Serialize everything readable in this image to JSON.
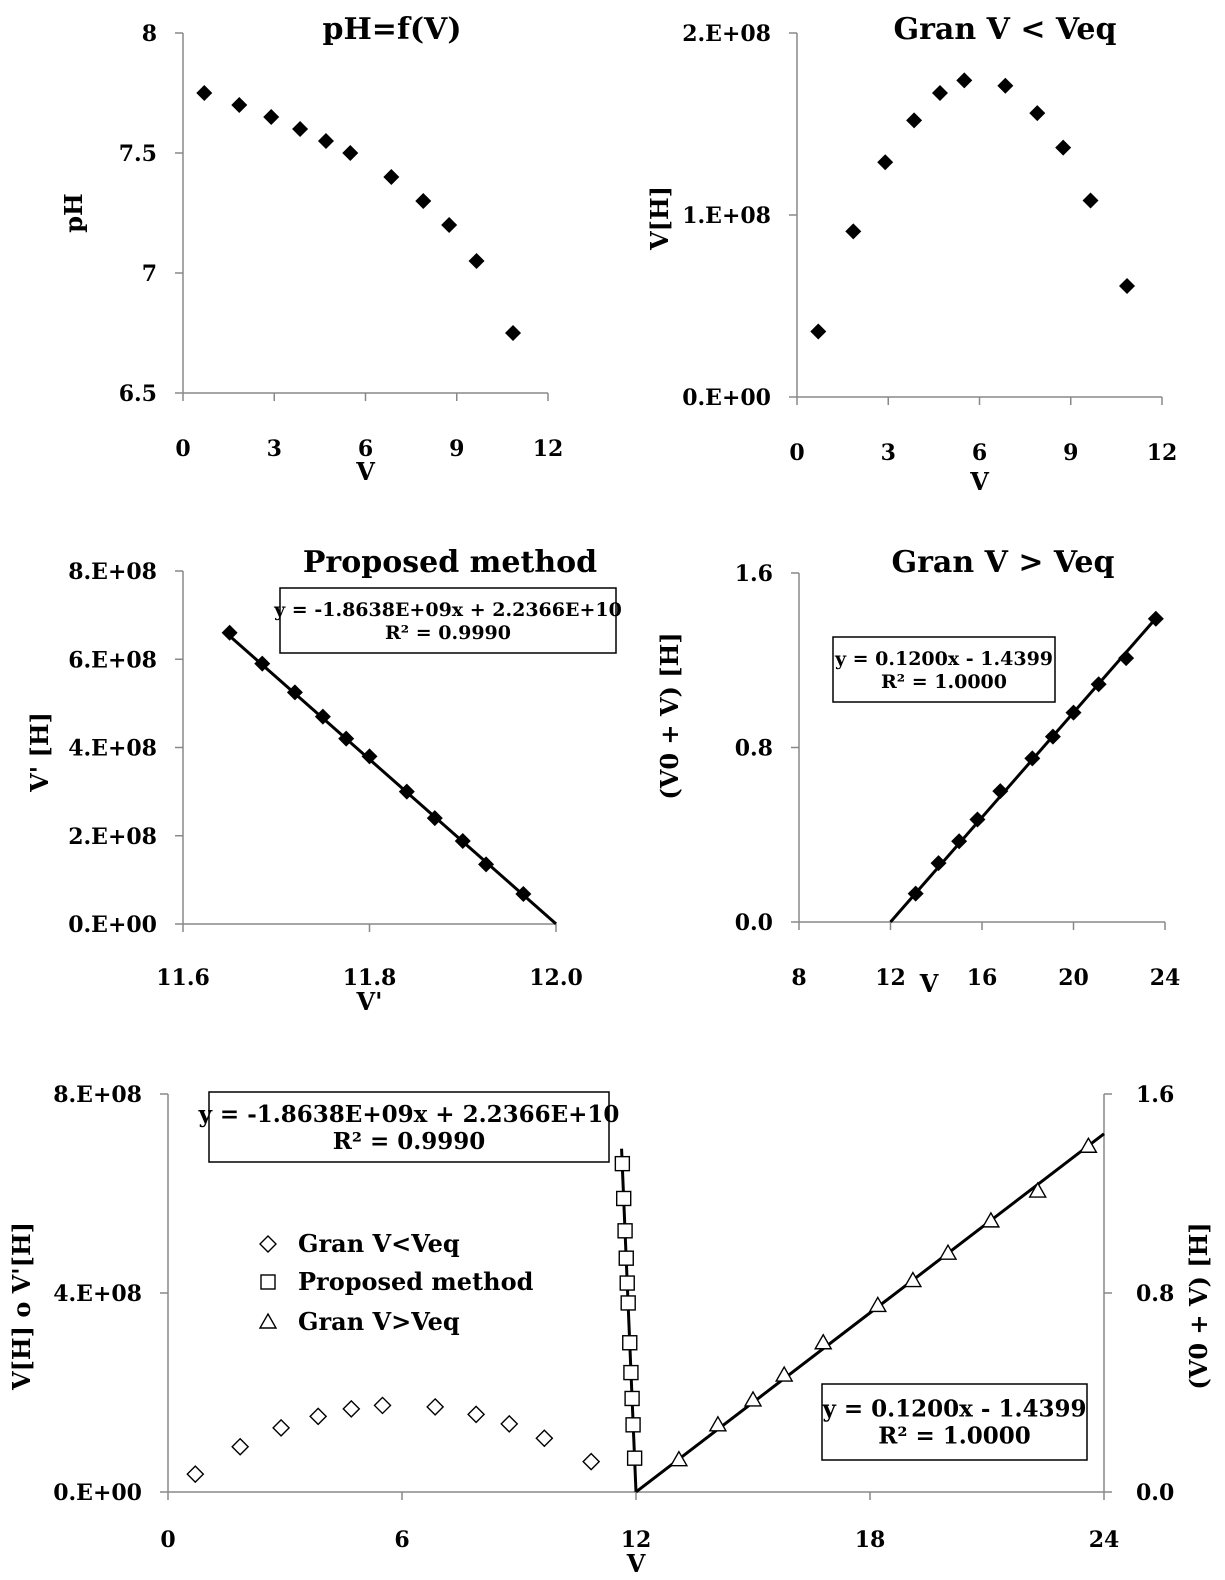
{
  "chart_data": [
    {
      "id": "ph",
      "type": "scatter",
      "title": "pH=f(V)",
      "xlabel": "V",
      "ylabel": "pH",
      "xlim": [
        0,
        12
      ],
      "ylim": [
        6.5,
        8
      ],
      "xticks": [
        "0",
        "3",
        "6",
        "9",
        "12"
      ],
      "yticks": [
        "6.5",
        "7",
        "7.5",
        "8"
      ],
      "grid": false,
      "series": [
        {
          "marker": "filled-diamond",
          "x": [
            0.7,
            1.85,
            2.9,
            3.85,
            4.7,
            5.5,
            6.85,
            7.9,
            8.75,
            9.65,
            10.85
          ],
          "y": [
            7.75,
            7.7,
            7.65,
            7.6,
            7.55,
            7.5,
            7.4,
            7.3,
            7.2,
            7.05,
            6.75
          ]
        }
      ]
    },
    {
      "id": "gran_lt",
      "type": "scatter",
      "title": "Gran  V < Veq",
      "xlabel": "V",
      "ylabel": "V[H]",
      "xlim": [
        0,
        12
      ],
      "ylim": [
        0,
        200000000
      ],
      "xticks": [
        "0",
        "3",
        "6",
        "9",
        "12"
      ],
      "yticks": [
        "0.E+00",
        "1.E+08",
        "2.E+08"
      ],
      "grid": false,
      "series": [
        {
          "marker": "filled-diamond",
          "x": [
            0.7,
            1.85,
            2.9,
            3.85,
            4.7,
            5.5,
            6.85,
            7.9,
            8.75,
            9.65,
            10.85
          ],
          "y": [
            36000000,
            91000000,
            129000000,
            152000000,
            167000000,
            174000000,
            171000000,
            156000000,
            137000000,
            108000000,
            61000000
          ]
        }
      ]
    },
    {
      "id": "proposed",
      "type": "scatter",
      "title": "Proposed method",
      "xlabel": "V'",
      "ylabel": "V' [H]",
      "xlim": [
        11.6,
        12.0
      ],
      "ylim": [
        0,
        800000000
      ],
      "xticks": [
        "11.6",
        "11.8",
        "12.0"
      ],
      "yticks": [
        "0.E+00",
        "2.E+08",
        "4.E+08",
        "6.E+08",
        "8.E+08"
      ],
      "grid": false,
      "equation": "y = -1.8638E+09x + 2.2366E+10",
      "r2": "R² = 0.9990",
      "trendline": {
        "slope": -1863800000,
        "intercept": 22366000000,
        "x": [
          11.65,
          12.0
        ]
      },
      "series": [
        {
          "marker": "filled-diamond",
          "x": [
            11.65,
            11.685,
            11.72,
            11.75,
            11.775,
            11.8,
            11.84,
            11.87,
            11.9,
            11.925,
            11.965
          ],
          "y": [
            660000000,
            590000000,
            525000000,
            470000000,
            420000000,
            380000000,
            300000000,
            240000000,
            188000000,
            135000000,
            68000000
          ]
        }
      ]
    },
    {
      "id": "gran_gt",
      "type": "scatter",
      "title": "Gran  V > Veq",
      "xlabel": "V",
      "ylabel": "(V0 + V) [H]",
      "xlim": [
        8,
        24
      ],
      "ylim": [
        0,
        1.6
      ],
      "xticks": [
        "8",
        "12",
        "16",
        "20",
        "24"
      ],
      "yticks": [
        "0.0",
        "0.8",
        "1.6"
      ],
      "grid": false,
      "equation": "y = 0.1200x - 1.4399",
      "r2": "R² = 1.0000",
      "trendline": {
        "slope": 0.12,
        "intercept": -1.4399,
        "x": [
          12.0,
          23.6
        ]
      },
      "series": [
        {
          "marker": "filled-diamond",
          "x": [
            13.1,
            14.1,
            15.0,
            15.8,
            16.8,
            18.2,
            19.1,
            20.0,
            21.1,
            22.3,
            23.6
          ],
          "y": [
            0.13,
            0.27,
            0.37,
            0.47,
            0.6,
            0.75,
            0.85,
            0.96,
            1.09,
            1.21,
            1.39
          ]
        }
      ]
    },
    {
      "id": "combined",
      "type": "scatter",
      "title": "",
      "xlabel": "V",
      "ylabel": "V[H] o V'[H]",
      "y2label": "(V0 + V) [H]",
      "xlim": [
        0,
        24
      ],
      "ylim": [
        0,
        800000000
      ],
      "y2lim": [
        0,
        1.6
      ],
      "xticks": [
        "0",
        "6",
        "12",
        "18",
        "24"
      ],
      "yticks": [
        "0.E+00",
        "4.E+08",
        "8.E+08"
      ],
      "y2ticks": [
        "0.0",
        "0.8",
        "1.6"
      ],
      "grid": false,
      "legend_position": "left-middle",
      "equation_left": "y = -1.8638E+09x + 2.2366E+10",
      "r2_left": "R² = 0.9990",
      "equation_right": "y = 0.1200x - 1.4399",
      "r2_right": "R² = 1.0000",
      "trendline_left": {
        "slope": -1863800000,
        "intercept": 22366000000,
        "x": [
          11.63,
          12.0
        ]
      },
      "trendline_right": {
        "slope": 0.12,
        "intercept": -1.4399,
        "x": [
          12.0,
          24.0
        ]
      },
      "series": [
        {
          "name": "Gran V<Veq",
          "marker": "open-diamond",
          "axis": "left",
          "x": [
            0.7,
            1.85,
            2.9,
            3.85,
            4.7,
            5.5,
            6.85,
            7.9,
            8.75,
            9.65,
            10.85
          ],
          "y": [
            36000000,
            91000000,
            129000000,
            152000000,
            167000000,
            174000000,
            171000000,
            156000000,
            137000000,
            108000000,
            61000000
          ]
        },
        {
          "name": "Proposed method",
          "marker": "open-square",
          "axis": "left",
          "x": [
            11.65,
            11.685,
            11.72,
            11.75,
            11.775,
            11.8,
            11.84,
            11.87,
            11.9,
            11.925,
            11.965
          ],
          "y": [
            660000000,
            590000000,
            525000000,
            470000000,
            420000000,
            380000000,
            300000000,
            240000000,
            188000000,
            135000000,
            68000000
          ]
        },
        {
          "name": "Gran V>Veq",
          "marker": "open-triangle",
          "axis": "right",
          "x": [
            13.1,
            14.1,
            15.0,
            15.8,
            16.8,
            18.2,
            19.1,
            20.0,
            21.1,
            22.3,
            23.6
          ],
          "y": [
            0.13,
            0.27,
            0.37,
            0.47,
            0.6,
            0.75,
            0.85,
            0.96,
            1.09,
            1.21,
            1.39
          ]
        }
      ]
    }
  ]
}
